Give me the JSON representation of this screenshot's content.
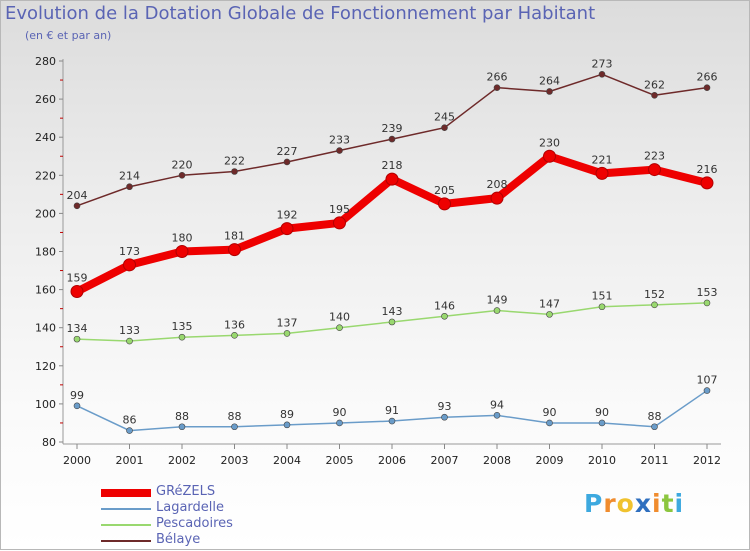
{
  "header": {
    "title": "Evolution de la Dotation Globale de Fonctionnement par Habitant",
    "subtitle": "(en € et par an)"
  },
  "chart_data": {
    "type": "line",
    "title": "Evolution de la Dotation Globale de Fonctionnement par Habitant",
    "subtitle": "(en € et par an)",
    "xlabel": "",
    "ylabel": "",
    "categories": [
      "2000",
      "2001",
      "2002",
      "2003",
      "2004",
      "2005",
      "2006",
      "2007",
      "2008",
      "2009",
      "2010",
      "2011",
      "2012"
    ],
    "ylim": [
      80,
      280
    ],
    "yticks": [
      80,
      100,
      120,
      140,
      160,
      180,
      200,
      220,
      240,
      260,
      280
    ],
    "grid": false,
    "legend_position": "bottom-left",
    "series": [
      {
        "name": "GRéZELS",
        "color": "#ee0000",
        "values": [
          159,
          173,
          180,
          181,
          192,
          195,
          218,
          205,
          208,
          230,
          221,
          223,
          216
        ]
      },
      {
        "name": "Lagardelle",
        "color": "#6a9cc9",
        "values": [
          99,
          86,
          88,
          88,
          89,
          90,
          91,
          93,
          94,
          90,
          90,
          88,
          107
        ]
      },
      {
        "name": "Pescadoires",
        "color": "#99d86f",
        "values": [
          134,
          133,
          135,
          136,
          137,
          140,
          143,
          146,
          149,
          147,
          151,
          152,
          153
        ]
      },
      {
        "name": "Bélaye",
        "color": "#6e2a2a",
        "values": [
          204,
          214,
          220,
          222,
          227,
          233,
          239,
          245,
          266,
          264,
          273,
          262,
          266
        ]
      }
    ]
  },
  "logo": {
    "letters": [
      "P",
      "r",
      "o",
      "x",
      "i",
      "t",
      "i"
    ],
    "colors": [
      "#3da9df",
      "#f08c2e",
      "#f0c22e",
      "#2f6fbf",
      "#f08c2e",
      "#8cc63f",
      "#3da9df"
    ]
  }
}
